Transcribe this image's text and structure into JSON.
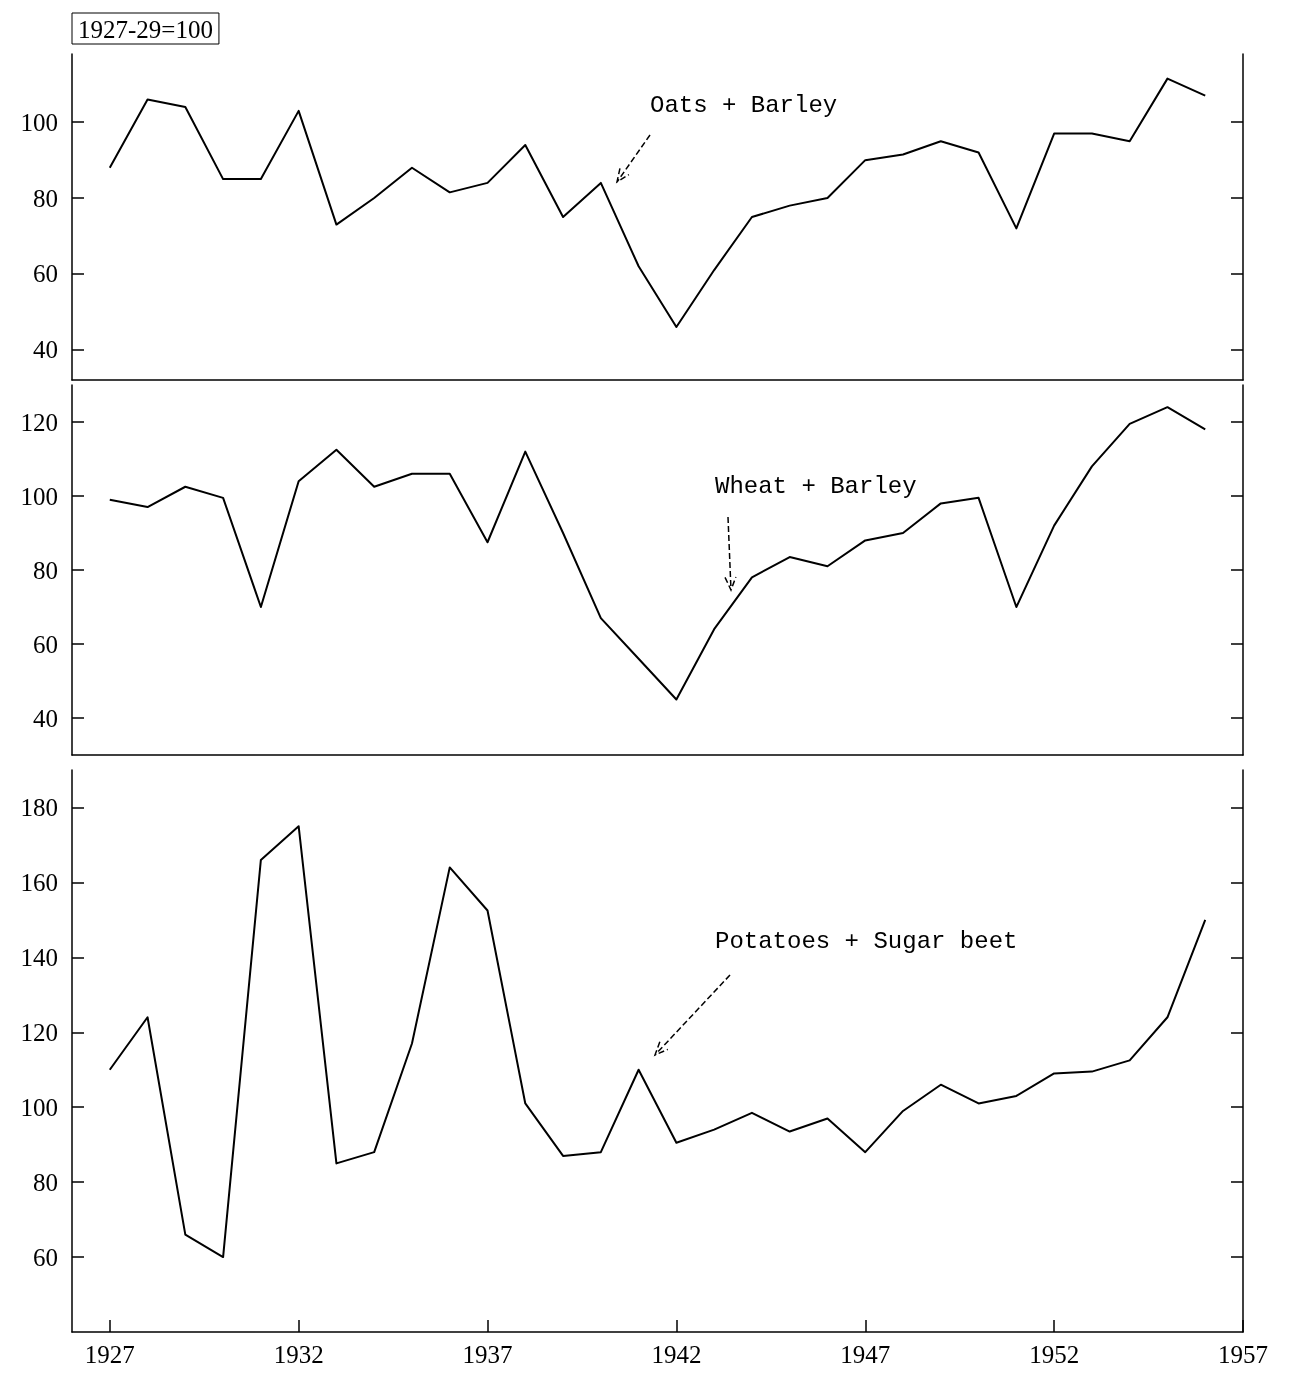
{
  "chart_data": [
    {
      "type": "line",
      "ylabel": "1927-29=100",
      "x": [
        1927,
        1928,
        1929,
        1930,
        1931,
        1932,
        1933,
        1934,
        1935,
        1936,
        1937,
        1938,
        1939,
        1940,
        1941,
        1942,
        1943,
        1944,
        1945,
        1946,
        1947,
        1948,
        1949,
        1950,
        1951,
        1952,
        1953,
        1954,
        1955,
        1956
      ],
      "series": [
        {
          "name": "Oats + Barley",
          "color": "#000000",
          "values": [
            88,
            106,
            104,
            85,
            85,
            103,
            73,
            80,
            88,
            81.5,
            84,
            94,
            75,
            84,
            62,
            46,
            61,
            75,
            78,
            80,
            90,
            91.5,
            95,
            92,
            72,
            97,
            97,
            95,
            111.5,
            107
          ]
        }
      ],
      "xlim": [
        1926,
        1957
      ],
      "ylim": [
        32,
        118
      ],
      "yticks": [
        40,
        60,
        80,
        100
      ],
      "tick_labels": "y"
    },
    {
      "type": "line",
      "x": [
        1927,
        1928,
        1929,
        1930,
        1931,
        1932,
        1933,
        1934,
        1935,
        1936,
        1937,
        1938,
        1939,
        1940,
        1941,
        1942,
        1943,
        1944,
        1945,
        1946,
        1947,
        1948,
        1949,
        1950,
        1951,
        1952,
        1953,
        1954,
        1955,
        1956
      ],
      "series": [
        {
          "name": "Wheat + Barley",
          "color": "#000000",
          "values": [
            99,
            97,
            102.5,
            99.5,
            70,
            104,
            112.5,
            102.5,
            106,
            106,
            87.5,
            112,
            90,
            67,
            56,
            45,
            64,
            78,
            83.5,
            81,
            88,
            90,
            98,
            99.5,
            70,
            92,
            108,
            119.5,
            124,
            118
          ]
        }
      ],
      "xlim": [
        1926,
        1957
      ],
      "ylim": [
        30,
        130
      ],
      "yticks": [
        40,
        60,
        80,
        100,
        120
      ],
      "tick_labels": "y"
    },
    {
      "type": "line",
      "x": [
        1927,
        1928,
        1929,
        1930,
        1931,
        1932,
        1933,
        1934,
        1935,
        1936,
        1937,
        1938,
        1939,
        1940,
        1941,
        1942,
        1943,
        1944,
        1945,
        1946,
        1947,
        1948,
        1949,
        1950,
        1951,
        1952,
        1953,
        1954,
        1955,
        1956
      ],
      "series": [
        {
          "name": "Potatoes + Sugar beet",
          "color": "#000000",
          "values": [
            110,
            124,
            66,
            60,
            166,
            175,
            85,
            88,
            117,
            164,
            152.5,
            101,
            87,
            88,
            110,
            90.5,
            94,
            98.5,
            93.5,
            97,
            88,
            99,
            106,
            101,
            103,
            109,
            109.5,
            112.5,
            124,
            150
          ]
        }
      ],
      "xlim": [
        1926,
        1957
      ],
      "ylim": [
        40,
        190
      ],
      "yticks": [
        60,
        80,
        100,
        120,
        140,
        160,
        180
      ],
      "xticks": [
        1927,
        1932,
        1937,
        1942,
        1947,
        1952,
        1957
      ]
    }
  ]
}
